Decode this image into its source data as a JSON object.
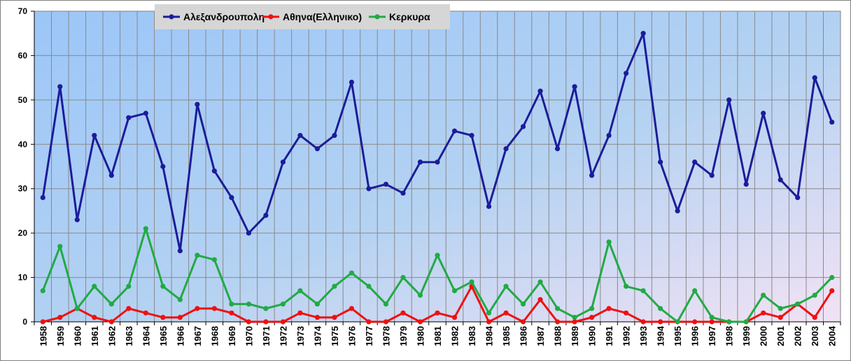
{
  "chart_data": {
    "type": "line",
    "title": "",
    "xlabel": "",
    "ylabel": "",
    "ylim": [
      0,
      70
    ],
    "yticks": [
      0,
      10,
      20,
      30,
      40,
      50,
      60,
      70
    ],
    "grid": true,
    "legend_placement": "top-left",
    "categories": [
      "1958",
      "1959",
      "1960",
      "1961",
      "1962",
      "1963",
      "1964",
      "1965",
      "1966",
      "1967",
      "1968",
      "1969",
      "1970",
      "1971",
      "1972",
      "1973",
      "1974",
      "1975",
      "1976",
      "1977",
      "1978",
      "1979",
      "1980",
      "1981",
      "1982",
      "1983",
      "1984",
      "1985",
      "1986",
      "1987",
      "1988",
      "1989",
      "1990",
      "1991",
      "1992",
      "1993",
      "1994",
      "1995",
      "1996",
      "1997",
      "1998",
      "1999",
      "2000",
      "2001",
      "2002",
      "2003",
      "2004"
    ],
    "series": [
      {
        "name": "Αλεξανδρουπολη",
        "color": "#1c1c9a",
        "values": [
          28,
          53,
          23,
          42,
          33,
          46,
          47,
          35,
          16,
          49,
          34,
          28,
          20,
          24,
          36,
          42,
          39,
          42,
          54,
          30,
          31,
          29,
          36,
          36,
          43,
          42,
          26,
          39,
          44,
          52,
          39,
          53,
          33,
          42,
          56,
          65,
          36,
          25,
          36,
          33,
          50,
          31,
          47,
          32,
          28,
          55,
          45
        ]
      },
      {
        "name": "Αθηνα(Ελληνικο)",
        "color": "#ee1111",
        "values": [
          0,
          1,
          3,
          1,
          0,
          3,
          2,
          1,
          1,
          3,
          3,
          2,
          0,
          0,
          0,
          2,
          1,
          1,
          3,
          0,
          0,
          2,
          0,
          2,
          1,
          8,
          0,
          2,
          0,
          5,
          0,
          0,
          1,
          3,
          2,
          0,
          0,
          0,
          0,
          0,
          0,
          0,
          2,
          1,
          4,
          1,
          7
        ]
      },
      {
        "name": "Κερκυρα",
        "color": "#22aa44",
        "values": [
          7,
          17,
          3,
          8,
          4,
          8,
          21,
          8,
          5,
          15,
          14,
          4,
          4,
          3,
          4,
          7,
          4,
          8,
          11,
          8,
          4,
          10,
          6,
          15,
          7,
          9,
          2,
          8,
          4,
          9,
          3,
          1,
          3,
          18,
          8,
          7,
          3,
          0,
          7,
          1,
          0,
          0,
          6,
          3,
          4,
          6,
          10
        ]
      }
    ]
  }
}
